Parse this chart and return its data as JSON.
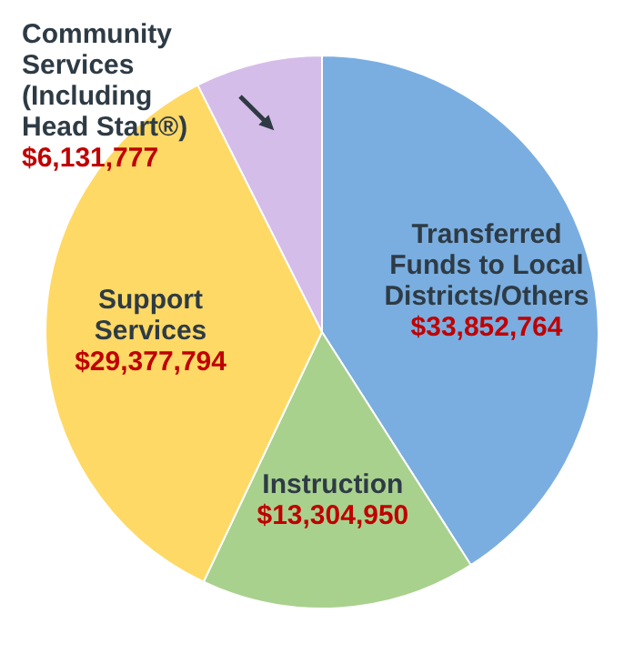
{
  "chart_data": {
    "type": "pie",
    "categories": [
      "Transferred Funds to Local Districts/Others",
      "Instruction",
      "Support Services",
      "Community Services (Including Head Start®)"
    ],
    "values": [
      33852764,
      13304950,
      29377794,
      6131777
    ],
    "colors": [
      "#7aaee0",
      "#a9d18e",
      "#ffd966",
      "#d5bde9"
    ],
    "value_labels": [
      "$33,852,764",
      "$13,304,950",
      "$29,377,794",
      "$6,131,777"
    ]
  }
}
